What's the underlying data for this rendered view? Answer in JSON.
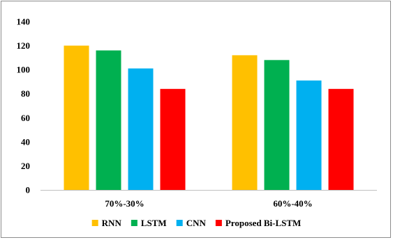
{
  "chart_data": {
    "type": "bar",
    "title": "",
    "xlabel": "",
    "ylabel": "",
    "categories": [
      "70%-30%",
      "60%-40%"
    ],
    "series": [
      {
        "name": "RNN",
        "values": [
          120,
          112
        ],
        "color": "#ffc000"
      },
      {
        "name": "LSTM",
        "values": [
          116,
          108
        ],
        "color": "#00b050"
      },
      {
        "name": "CNN",
        "values": [
          101,
          91
        ],
        "color": "#00b0f0"
      },
      {
        "name": "Proposed Bi-LSTM",
        "values": [
          84,
          84
        ],
        "color": "#ff0000"
      }
    ],
    "ylim": [
      0,
      140
    ],
    "yticks": [
      0,
      20,
      40,
      60,
      80,
      100,
      120,
      140
    ],
    "grid": false,
    "legend": "bottom"
  }
}
